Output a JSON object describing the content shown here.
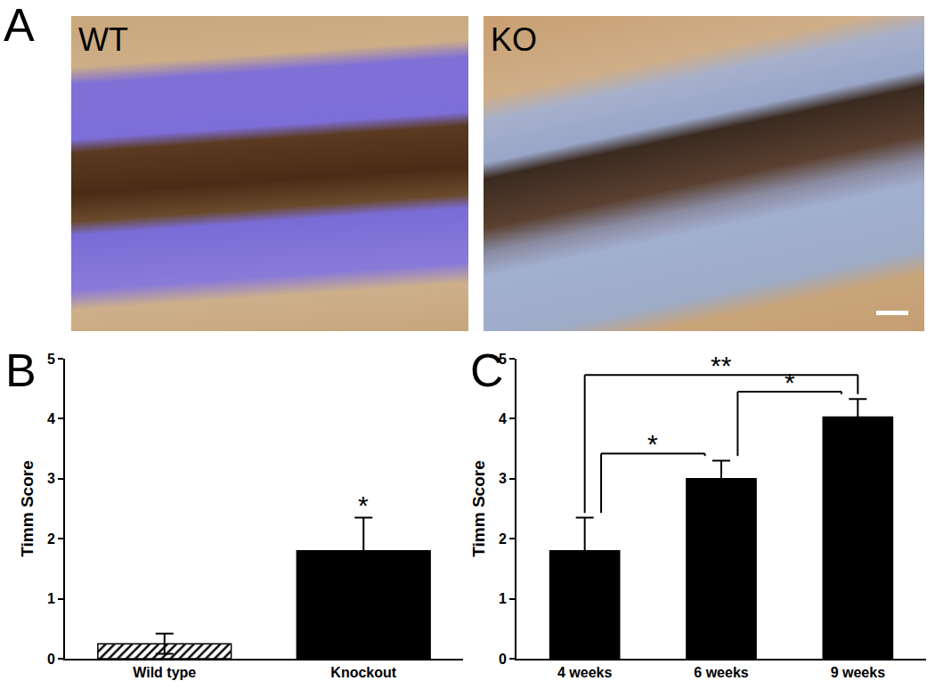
{
  "image_panel": {
    "label": "A",
    "images": [
      {
        "label": "WT"
      },
      {
        "label": "KO"
      }
    ]
  },
  "chart_data": [
    {
      "panel_label": "B",
      "type": "bar",
      "categories": [
        "Wild type",
        "Knockout"
      ],
      "values": [
        0.25,
        1.8
      ],
      "errors": [
        0.17,
        0.55
      ],
      "colors": [
        "#000000",
        "#000000"
      ],
      "y_label": "Timm Score",
      "ylim": [
        0,
        5
      ],
      "yticks": [
        0,
        1,
        2,
        3,
        4,
        5
      ],
      "grid": false,
      "annotations": [
        {
          "category": "Knockout",
          "text": "*"
        }
      ]
    },
    {
      "panel_label": "C",
      "type": "bar",
      "categories": [
        "4 weeks",
        "6 weeks",
        "9 weeks"
      ],
      "values": [
        1.8,
        3.0,
        4.03
      ],
      "errors": [
        0.55,
        0.3,
        0.3
      ],
      "colors": [
        "#000000",
        "#000000",
        "#000000"
      ],
      "y_label": "Timm Score",
      "ylim": [
        0,
        5
      ],
      "yticks": [
        0,
        1,
        2,
        3,
        4,
        5
      ],
      "grid": false,
      "brackets": [
        {
          "from": "4 weeks",
          "to": "6 weeks",
          "text": "*"
        },
        {
          "from": "6 weeks",
          "to": "9 weeks",
          "text": "*"
        },
        {
          "from": "4 weeks",
          "to": "9 weeks",
          "text": "**"
        }
      ]
    }
  ]
}
